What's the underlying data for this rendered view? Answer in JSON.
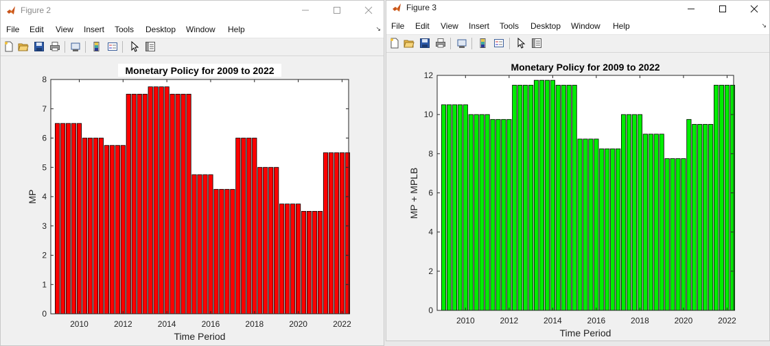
{
  "menu": [
    "File",
    "Edit",
    "View",
    "Insert",
    "Tools",
    "Desktop",
    "Window",
    "Help"
  ],
  "win2": {
    "title": "Figure 2",
    "chart_data": {
      "type": "bar",
      "title": "Monetary Policy for 2009 to 2022",
      "xlabel": "Time Period",
      "ylabel": "MP",
      "xlim": [
        2008.7,
        2022.3
      ],
      "ylim": [
        0,
        8
      ],
      "xticks": [
        2010,
        2012,
        2014,
        2016,
        2018,
        2020,
        2022
      ],
      "yticks": [
        0,
        1,
        2,
        3,
        4,
        5,
        6,
        7,
        8
      ],
      "bar_color": "#ff0000",
      "x": [
        2009,
        2009.25,
        2009.5,
        2009.75,
        2010,
        2010.25,
        2010.5,
        2010.75,
        2011,
        2011.25,
        2011.5,
        2011.75,
        2012,
        2012.25,
        2012.5,
        2012.75,
        2013,
        2013.25,
        2013.5,
        2013.75,
        2014,
        2014.25,
        2014.5,
        2014.75,
        2015,
        2015.25,
        2015.5,
        2015.75,
        2016,
        2016.25,
        2016.5,
        2016.75,
        2017,
        2017.25,
        2017.5,
        2017.75,
        2018,
        2018.25,
        2018.5,
        2018.75,
        2019,
        2019.25,
        2019.5,
        2019.75,
        2020,
        2020.25,
        2020.5,
        2020.75,
        2021,
        2021.25,
        2021.5,
        2021.75,
        2022,
        2022.25
      ],
      "values": [
        6.5,
        6.5,
        6.5,
        6.5,
        6.5,
        6.0,
        6.0,
        6.0,
        6.0,
        5.75,
        5.75,
        5.75,
        5.75,
        7.5,
        7.5,
        7.5,
        7.5,
        7.75,
        7.75,
        7.75,
        7.75,
        7.5,
        7.5,
        7.5,
        7.5,
        4.75,
        4.75,
        4.75,
        4.75,
        4.25,
        4.25,
        4.25,
        4.25,
        6.0,
        6.0,
        6.0,
        6.0,
        5.0,
        5.0,
        5.0,
        5.0,
        3.75,
        3.75,
        3.75,
        3.75,
        3.5,
        3.5,
        3.5,
        3.5,
        5.5,
        5.5,
        5.5,
        5.5,
        5.5
      ]
    }
  },
  "win3": {
    "title": "Figure 3",
    "chart_data": {
      "type": "bar",
      "title": "Monetary Policy for 2009 to 2022",
      "xlabel": "Time Period",
      "ylabel": "MP + MPLB",
      "xlim": [
        2008.7,
        2022.3
      ],
      "ylim": [
        0,
        12
      ],
      "xticks": [
        2010,
        2012,
        2014,
        2016,
        2018,
        2020,
        2022
      ],
      "yticks": [
        0,
        2,
        4,
        6,
        8,
        10,
        12
      ],
      "bar_color": "#00ee00",
      "x": [
        2009,
        2009.25,
        2009.5,
        2009.75,
        2010,
        2010.25,
        2010.5,
        2010.75,
        2011,
        2011.25,
        2011.5,
        2011.75,
        2012,
        2012.25,
        2012.5,
        2012.75,
        2013,
        2013.25,
        2013.5,
        2013.75,
        2014,
        2014.25,
        2014.5,
        2014.75,
        2015,
        2015.25,
        2015.5,
        2015.75,
        2016,
        2016.25,
        2016.5,
        2016.75,
        2017,
        2017.25,
        2017.5,
        2017.75,
        2018,
        2018.25,
        2018.5,
        2018.75,
        2019,
        2019.25,
        2019.5,
        2019.75,
        2020,
        2020.25,
        2020.5,
        2020.75,
        2021,
        2021.25,
        2021.5,
        2021.75,
        2022,
        2022.25
      ],
      "values": [
        10.5,
        10.5,
        10.5,
        10.5,
        10.5,
        10.0,
        10.0,
        10.0,
        10.0,
        9.75,
        9.75,
        9.75,
        9.75,
        11.5,
        11.5,
        11.5,
        11.5,
        11.75,
        11.75,
        11.75,
        11.75,
        11.5,
        11.5,
        11.5,
        11.5,
        8.75,
        8.75,
        8.75,
        8.75,
        8.25,
        8.25,
        8.25,
        8.25,
        10.0,
        10.0,
        10.0,
        10.0,
        9.0,
        9.0,
        9.0,
        9.0,
        7.75,
        7.75,
        7.75,
        7.75,
        9.75,
        9.5,
        9.5,
        9.5,
        9.5,
        11.5,
        11.5,
        11.5,
        11.5
      ]
    }
  }
}
